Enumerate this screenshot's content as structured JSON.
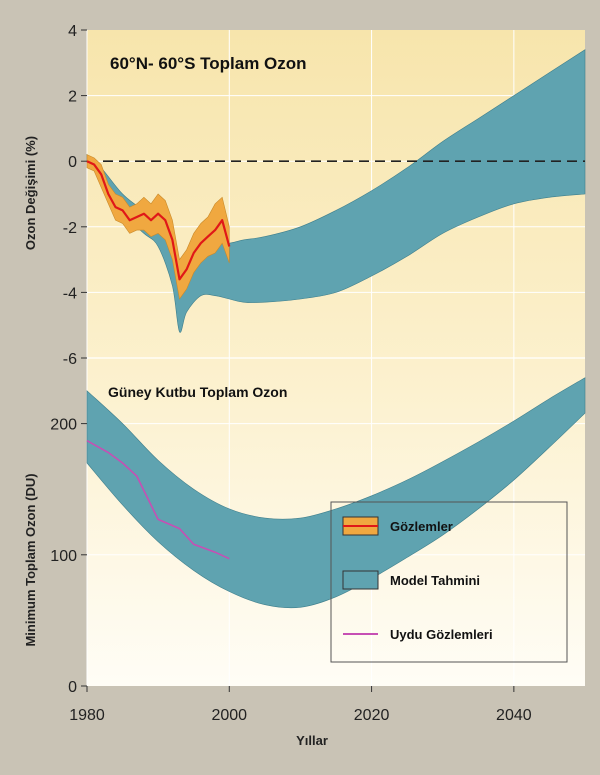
{
  "colors": {
    "model_fill": "#5fa3b0",
    "model_stroke": "#3f7f8c",
    "obs_fill": "#f0a840",
    "obs_line": "#e01818",
    "sat_line": "#c64fb4",
    "bg_top": "#f7e5ac",
    "bg_bottom": "#fffdf6"
  },
  "chart_data": [
    {
      "type": "area",
      "title": "60°N- 60°S Toplam Ozon",
      "ylabel": "Ozon Değişimi (%)",
      "xlim": [
        1980,
        2050
      ],
      "ylim": [
        -6,
        4
      ],
      "x_ticks": [
        1980,
        2000,
        2020,
        2040
      ],
      "y_ticks": [
        -6,
        -4,
        -2,
        0,
        2,
        4
      ],
      "reference_line": 0,
      "model_band": {
        "x": [
          1980,
          1982,
          1985,
          1988,
          1990,
          1992,
          1993,
          1994,
          1996,
          1998,
          2000,
          2002,
          2005,
          2010,
          2015,
          2020,
          2025,
          2030,
          2035,
          2040,
          2045,
          2050
        ],
        "upper": [
          0.2,
          -0.2,
          -1.0,
          -1.5,
          -1.7,
          -2.4,
          -3.4,
          -3.0,
          -2.6,
          -2.5,
          -2.5,
          -2.4,
          -2.3,
          -2.0,
          -1.5,
          -0.9,
          -0.2,
          0.6,
          1.3,
          2.0,
          2.7,
          3.4
        ],
        "lower": [
          0.0,
          -0.6,
          -1.6,
          -2.2,
          -2.6,
          -3.8,
          -5.2,
          -4.6,
          -4.1,
          -4.1,
          -4.2,
          -4.3,
          -4.3,
          -4.2,
          -4.0,
          -3.5,
          -2.9,
          -2.2,
          -1.7,
          -1.3,
          -1.1,
          -1.0
        ]
      },
      "observations": {
        "x": [
          1980,
          1981,
          1982,
          1983,
          1984,
          1985,
          1986,
          1987,
          1988,
          1989,
          1990,
          1991,
          1992,
          1993,
          1994,
          1995,
          1996,
          1997,
          1998,
          1999,
          2000
        ],
        "mean": [
          0.0,
          -0.1,
          -0.4,
          -1.0,
          -1.4,
          -1.5,
          -1.8,
          -1.7,
          -1.6,
          -1.8,
          -1.6,
          -1.8,
          -2.4,
          -3.6,
          -3.3,
          -2.8,
          -2.5,
          -2.3,
          -2.1,
          -1.8,
          -2.6
        ],
        "upper": [
          0.2,
          0.1,
          -0.1,
          -0.7,
          -1.0,
          -1.1,
          -1.4,
          -1.3,
          -1.1,
          -1.3,
          -1.0,
          -1.2,
          -1.8,
          -3.0,
          -2.7,
          -2.2,
          -1.9,
          -1.7,
          -1.3,
          -1.1,
          -2.0
        ],
        "lower": [
          -0.2,
          -0.3,
          -0.8,
          -1.3,
          -1.8,
          -1.9,
          -2.2,
          -2.1,
          -2.1,
          -2.3,
          -2.2,
          -2.4,
          -3.0,
          -4.2,
          -3.9,
          -3.4,
          -3.1,
          -2.9,
          -2.8,
          -2.5,
          -3.1
        ]
      }
    },
    {
      "type": "area",
      "title": "Güney Kutbu Toplam Ozon",
      "xlabel": "Yıllar",
      "ylabel": "Minimum Toplam Ozon (DU)",
      "xlim": [
        1980,
        2050
      ],
      "ylim": [
        0,
        250
      ],
      "x_ticks": [
        1980,
        2000,
        2020,
        2040
      ],
      "y_ticks": [
        0,
        100,
        200
      ],
      "model_band": {
        "x": [
          1980,
          1985,
          1990,
          1995,
          2000,
          2005,
          2010,
          2015,
          2020,
          2025,
          2030,
          2035,
          2040,
          2045,
          2050
        ],
        "upper": [
          225,
          200,
          172,
          150,
          135,
          128,
          128,
          135,
          145,
          157,
          171,
          186,
          202,
          219,
          235
        ],
        "lower": [
          170,
          138,
          110,
          88,
          72,
          62,
          60,
          68,
          82,
          98,
          115,
          135,
          157,
          182,
          208
        ]
      },
      "satellite_observations": {
        "x": [
          1980,
          1983,
          1985,
          1987,
          1990,
          1993,
          1995,
          1998,
          2000
        ],
        "y": [
          187,
          178,
          170,
          160,
          127,
          120,
          108,
          102,
          97
        ]
      },
      "legend": {
        "position": "bottom-right",
        "entries": [
          {
            "kind": "observations",
            "label": "Gözlemler"
          },
          {
            "kind": "model",
            "label": "Model Tahmini"
          },
          {
            "kind": "satellite",
            "label": "Uydu Gözlemleri"
          }
        ]
      }
    }
  ]
}
